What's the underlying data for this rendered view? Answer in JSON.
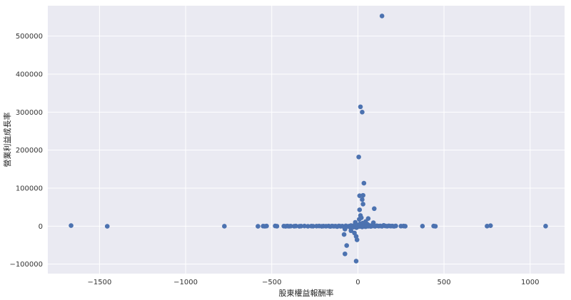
{
  "chart_data": {
    "type": "scatter",
    "xlabel": "股東權益報酬率",
    "ylabel": "營業利益成長率",
    "xlim": [
      -1800,
      1200
    ],
    "ylim": [
      -125000,
      580000
    ],
    "xticks": [
      -1500,
      -1000,
      -500,
      0,
      500,
      1000
    ],
    "xtick_labels": [
      "−1500",
      "−1000",
      "−500",
      "0",
      "500",
      "1000"
    ],
    "yticks": [
      -100000,
      0,
      100000,
      200000,
      300000,
      400000,
      500000
    ],
    "ytick_labels": [
      "−100000",
      "0",
      "100000",
      "200000",
      "300000",
      "400000",
      "500000"
    ],
    "grid": true,
    "background_color": "#eaeaf2",
    "marker_color": "#4c72b0",
    "points": [
      [
        140,
        553000
      ],
      [
        15,
        314000
      ],
      [
        25,
        300000
      ],
      [
        5,
        182000
      ],
      [
        35,
        113000
      ],
      [
        30,
        81000
      ],
      [
        10,
        80000
      ],
      [
        25,
        70000
      ],
      [
        30,
        58000
      ],
      [
        95,
        46000
      ],
      [
        10,
        43000
      ],
      [
        15,
        28000
      ],
      [
        20,
        22000
      ],
      [
        8,
        18000
      ],
      [
        60,
        20000
      ],
      [
        -15,
        10000
      ],
      [
        45,
        12000
      ],
      [
        90,
        9000
      ],
      [
        -75,
        -8000
      ],
      [
        -40,
        -12000
      ],
      [
        -80,
        -22000
      ],
      [
        -20,
        -18000
      ],
      [
        -10,
        -27000
      ],
      [
        -5,
        -36000
      ],
      [
        -65,
        -51000
      ],
      [
        -75,
        -73000
      ],
      [
        -10,
        -92000
      ],
      [
        -1665,
        1500
      ],
      [
        -1455,
        -500
      ],
      [
        -775,
        -200
      ],
      [
        -580,
        -500
      ],
      [
        -550,
        0
      ],
      [
        -540,
        -300
      ],
      [
        -530,
        200
      ],
      [
        -480,
        500
      ],
      [
        -470,
        -200
      ],
      [
        -430,
        0
      ],
      [
        -420,
        -500
      ],
      [
        -410,
        200
      ],
      [
        -400,
        -300
      ],
      [
        -390,
        0
      ],
      [
        -370,
        -200
      ],
      [
        -360,
        300
      ],
      [
        -340,
        -400
      ],
      [
        -330,
        0
      ],
      [
        -310,
        200
      ],
      [
        -290,
        -300
      ],
      [
        -270,
        100
      ],
      [
        -260,
        -200
      ],
      [
        -240,
        0
      ],
      [
        -225,
        300
      ],
      [
        -210,
        -500
      ],
      [
        -200,
        0
      ],
      [
        -185,
        -200
      ],
      [
        -170,
        200
      ],
      [
        -160,
        -800
      ],
      [
        -150,
        400
      ],
      [
        -140,
        -300
      ],
      [
        -130,
        0
      ],
      [
        -120,
        -1200
      ],
      [
        -110,
        600
      ],
      [
        -100,
        -400
      ],
      [
        -90,
        0
      ],
      [
        -80,
        -2000
      ],
      [
        -70,
        800
      ],
      [
        -60,
        -600
      ],
      [
        -50,
        0
      ],
      [
        -45,
        -3000
      ],
      [
        -40,
        1500
      ],
      [
        -35,
        -1000
      ],
      [
        -30,
        500
      ],
      [
        -25,
        -2500
      ],
      [
        -20,
        2000
      ],
      [
        -15,
        -500
      ],
      [
        -10,
        3000
      ],
      [
        -8,
        -4000
      ],
      [
        -5,
        1000
      ],
      [
        -2,
        -1500
      ],
      [
        0,
        0
      ],
      [
        2,
        2500
      ],
      [
        5,
        -1000
      ],
      [
        8,
        4000
      ],
      [
        10,
        -600
      ],
      [
        12,
        6000
      ],
      [
        15,
        1500
      ],
      [
        18,
        -800
      ],
      [
        20,
        3000
      ],
      [
        22,
        500
      ],
      [
        25,
        -2000
      ],
      [
        28,
        8000
      ],
      [
        30,
        1000
      ],
      [
        35,
        -500
      ],
      [
        40,
        2500
      ],
      [
        45,
        -1500
      ],
      [
        50,
        1200
      ],
      [
        55,
        5000
      ],
      [
        60,
        -300
      ],
      [
        65,
        2000
      ],
      [
        70,
        700
      ],
      [
        75,
        -800
      ],
      [
        80,
        1500
      ],
      [
        90,
        400
      ],
      [
        100,
        -500
      ],
      [
        110,
        1000
      ],
      [
        120,
        0
      ],
      [
        130,
        600
      ],
      [
        140,
        -300
      ],
      [
        150,
        2000
      ],
      [
        160,
        400
      ],
      [
        170,
        -200
      ],
      [
        180,
        800
      ],
      [
        190,
        0
      ],
      [
        200,
        300
      ],
      [
        210,
        -400
      ],
      [
        220,
        500
      ],
      [
        250,
        0
      ],
      [
        265,
        300
      ],
      [
        275,
        -200
      ],
      [
        375,
        0
      ],
      [
        440,
        200
      ],
      [
        450,
        -300
      ],
      [
        750,
        0
      ],
      [
        770,
        1200
      ],
      [
        1090,
        0
      ]
    ]
  }
}
